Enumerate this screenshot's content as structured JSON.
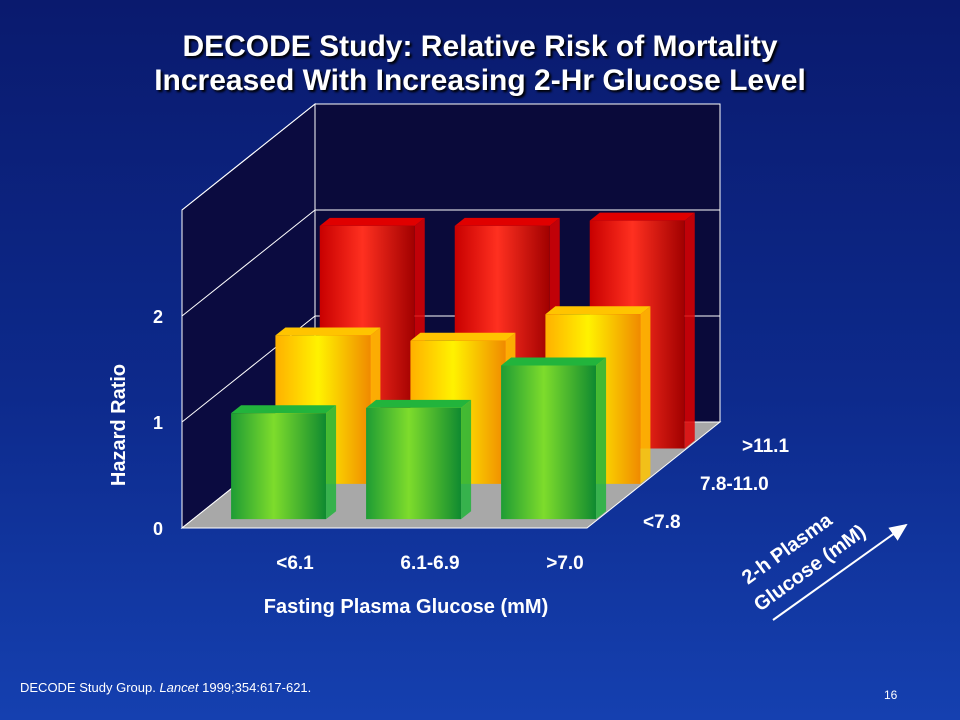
{
  "title_line1": "DECODE Study: Relative Risk of Mortality",
  "title_line2": "Increased With Increasing 2-Hr Glucose Level",
  "chart_data": {
    "type": "bar",
    "subtype": "3d-grouped",
    "categories": [
      "<6.1",
      "6.1-6.9",
      ">7.0"
    ],
    "series": [
      {
        "name": "<7.8",
        "values": [
          1.0,
          1.05,
          1.45
        ],
        "color": "#22b43c"
      },
      {
        "name": "7.8-11.0",
        "values": [
          1.4,
          1.35,
          1.6
        ],
        "color": "#ffc400"
      },
      {
        "name": ">11.1",
        "values": [
          2.1,
          2.1,
          2.15
        ],
        "color": "#e00000"
      }
    ],
    "yticks": [
      "0",
      "1",
      "2"
    ],
    "ylim": [
      0,
      3
    ],
    "ylabel": "Hazard Ratio",
    "xlabel": "Fasting Plasma Glucose (mM)",
    "zlabel_line1": "2-h Plasma",
    "zlabel_line2": "Glucose (mM)",
    "grid": true
  },
  "citation": {
    "authors": "DECODE Study Group. ",
    "journal": "Lancet",
    "ref": " 1999;354:617-621."
  },
  "page_number": "16"
}
